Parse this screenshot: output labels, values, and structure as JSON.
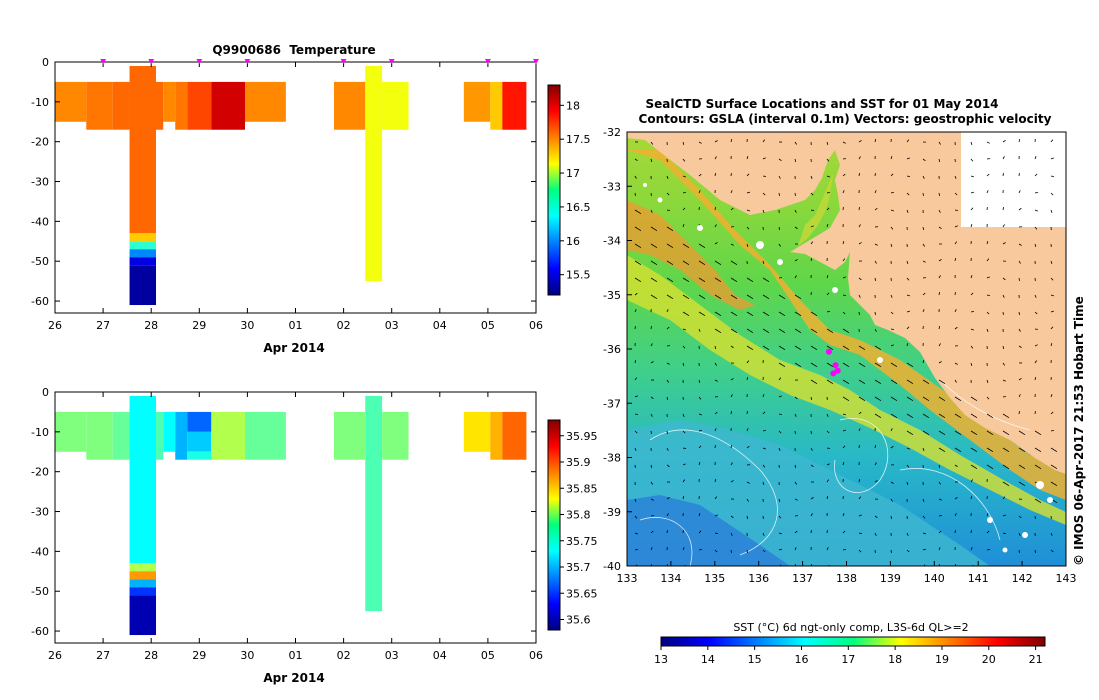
{
  "colors": {
    "land": "#f9c99e",
    "sea_white": "#ffffff",
    "marker": "#ff00ff",
    "axis": "#000000"
  },
  "chart_data": [
    {
      "id": "temperature-section",
      "type": "heatmap",
      "title": "Q9900686  Temperature",
      "xlabel": "Apr 2014",
      "ylabel": "",
      "x_ticks": [
        "26",
        "27",
        "28",
        "29",
        "30",
        "01",
        "02",
        "03",
        "04",
        "05",
        "06"
      ],
      "x_tick_days": [
        26,
        27,
        28,
        29,
        30,
        31,
        32,
        33,
        34,
        35,
        36
      ],
      "xlim": [
        26,
        36
      ],
      "y_ticks": [
        0,
        -10,
        -20,
        -30,
        -40,
        -50,
        -60
      ],
      "ylim": [
        -63,
        0
      ],
      "colorbar": {
        "ticks": [
          15.5,
          16,
          16.5,
          17,
          17.5,
          18
        ],
        "range": [
          15.2,
          18.3
        ]
      },
      "profile_markers": [
        27,
        28,
        29,
        30,
        32,
        33,
        35,
        36
      ],
      "profiles": [
        {
          "x0": 26.0,
          "x1": 26.65,
          "cells": [
            [
              -5,
              -15,
              17.5
            ]
          ]
        },
        {
          "x0": 26.65,
          "x1": 27.2,
          "cells": [
            [
              -5,
              -17,
              17.55
            ]
          ]
        },
        {
          "x0": 27.2,
          "x1": 27.55,
          "cells": [
            [
              -5,
              -17,
              17.6
            ]
          ]
        },
        {
          "x0": 27.55,
          "x1": 28.1,
          "cells": [
            [
              -1,
              -43,
              17.6
            ],
            [
              -43,
              -45,
              17.3
            ],
            [
              -45,
              -47,
              16.5
            ],
            [
              -47,
              -49,
              16.0
            ],
            [
              -49,
              -51,
              15.5
            ],
            [
              -51,
              -61,
              15.3
            ]
          ]
        },
        {
          "x0": 28.1,
          "x1": 28.25,
          "cells": [
            [
              -5,
              -17,
              17.6
            ]
          ]
        },
        {
          "x0": 28.25,
          "x1": 28.5,
          "cells": [
            [
              -5,
              -15,
              17.5
            ]
          ]
        },
        {
          "x0": 28.5,
          "x1": 28.75,
          "cells": [
            [
              -5,
              -17,
              17.55
            ]
          ]
        },
        {
          "x0": 28.75,
          "x1": 29.25,
          "cells": [
            [
              -5,
              -17,
              17.7
            ]
          ]
        },
        {
          "x0": 29.25,
          "x1": 29.95,
          "cells": [
            [
              -5,
              -17,
              18.05
            ]
          ]
        },
        {
          "x0": 29.95,
          "x1": 30.8,
          "cells": [
            [
              -5,
              -15,
              17.5
            ]
          ]
        },
        {
          "x0": 31.8,
          "x1": 32.45,
          "cells": [
            [
              -5,
              -17,
              17.5
            ]
          ]
        },
        {
          "x0": 32.45,
          "x1": 32.8,
          "cells": [
            [
              -1,
              -55,
              17.1
            ]
          ]
        },
        {
          "x0": 32.8,
          "x1": 33.35,
          "cells": [
            [
              -5,
              -17,
              17.1
            ]
          ]
        },
        {
          "x0": 34.5,
          "x1": 35.05,
          "cells": [
            [
              -5,
              -15,
              17.45
            ]
          ]
        },
        {
          "x0": 35.05,
          "x1": 35.3,
          "cells": [
            [
              -5,
              -17,
              17.3
            ]
          ]
        },
        {
          "x0": 35.3,
          "x1": 35.8,
          "cells": [
            [
              -5,
              -17,
              17.85
            ]
          ]
        }
      ]
    },
    {
      "id": "salinity-section",
      "type": "heatmap",
      "title": "",
      "xlabel": "Apr 2014",
      "ylabel": "",
      "x_ticks": [
        "26",
        "27",
        "28",
        "29",
        "30",
        "01",
        "02",
        "03",
        "04",
        "05",
        "06"
      ],
      "x_tick_days": [
        26,
        27,
        28,
        29,
        30,
        31,
        32,
        33,
        34,
        35,
        36
      ],
      "xlim": [
        26,
        36
      ],
      "y_ticks": [
        0,
        -10,
        -20,
        -30,
        -40,
        -50,
        -60
      ],
      "ylim": [
        -63,
        0
      ],
      "colorbar": {
        "ticks": [
          35.6,
          35.65,
          35.7,
          35.75,
          35.8,
          35.85,
          35.9,
          35.95
        ],
        "range": [
          35.58,
          35.98
        ]
      },
      "profiles": [
        {
          "x0": 26.0,
          "x1": 26.65,
          "cells": [
            [
              -5,
              -15,
              35.78
            ]
          ]
        },
        {
          "x0": 26.65,
          "x1": 27.2,
          "cells": [
            [
              -5,
              -17,
              35.78
            ]
          ]
        },
        {
          "x0": 27.2,
          "x1": 27.55,
          "cells": [
            [
              -5,
              -17,
              35.77
            ]
          ]
        },
        {
          "x0": 27.55,
          "x1": 28.1,
          "cells": [
            [
              -1,
              -43,
              35.73
            ],
            [
              -43,
              -45,
              35.8
            ],
            [
              -45,
              -47,
              35.87
            ],
            [
              -47,
              -49,
              35.7
            ],
            [
              -49,
              -51,
              35.65
            ],
            [
              -51,
              -61,
              35.6
            ]
          ]
        },
        {
          "x0": 28.1,
          "x1": 28.25,
          "cells": [
            [
              -5,
              -17,
              35.76
            ]
          ]
        },
        {
          "x0": 28.25,
          "x1": 28.5,
          "cells": [
            [
              -5,
              -15,
              35.73
            ]
          ]
        },
        {
          "x0": 28.5,
          "x1": 28.75,
          "cells": [
            [
              -5,
              -17,
              35.7
            ]
          ]
        },
        {
          "x0": 28.75,
          "x1": 29.25,
          "cells": [
            [
              -5,
              -10,
              35.67
            ],
            [
              -10,
              -15,
              35.71
            ],
            [
              -15,
              -17,
              35.74
            ]
          ]
        },
        {
          "x0": 29.25,
          "x1": 29.95,
          "cells": [
            [
              -5,
              -17,
              35.8
            ]
          ]
        },
        {
          "x0": 29.95,
          "x1": 30.8,
          "cells": [
            [
              -5,
              -17,
              35.77
            ]
          ]
        },
        {
          "x0": 31.8,
          "x1": 32.45,
          "cells": [
            [
              -5,
              -17,
              35.78
            ]
          ]
        },
        {
          "x0": 32.45,
          "x1": 32.8,
          "cells": [
            [
              -1,
              -55,
              35.76
            ]
          ]
        },
        {
          "x0": 32.8,
          "x1": 33.35,
          "cells": [
            [
              -5,
              -17,
              35.78
            ]
          ]
        },
        {
          "x0": 34.5,
          "x1": 35.05,
          "cells": [
            [
              -5,
              -15,
              35.84
            ]
          ]
        },
        {
          "x0": 35.05,
          "x1": 35.3,
          "cells": [
            [
              -5,
              -17,
              35.86
            ]
          ]
        },
        {
          "x0": 35.3,
          "x1": 35.8,
          "cells": [
            [
              -5,
              -17,
              35.89
            ]
          ]
        }
      ]
    },
    {
      "id": "sst-map",
      "type": "heatmap",
      "title_line1": "SealCTD Surface Locations and SST for 01 May 2014",
      "title_line2": "Contours: GSLA (interval 0.1m) Vectors: geostrophic velocity",
      "x_ticks": [
        133,
        134,
        135,
        136,
        137,
        138,
        139,
        140,
        141,
        142,
        143
      ],
      "xlim": [
        133,
        143
      ],
      "y_ticks": [
        -32,
        -33,
        -34,
        -35,
        -36,
        -37,
        -38,
        -39,
        -40
      ],
      "ylim": [
        -40,
        -32
      ],
      "colorbar_label": "SST (°C) 6d ngt-only comp, L3S-6d QL>=2",
      "colorbar_ticks": [
        13,
        14,
        15,
        16,
        17,
        18,
        19,
        20,
        21
      ],
      "colorbar_range": [
        13,
        21.2
      ],
      "credit": "© IMOS 06-Apr-2017 21:53 Hobart Time",
      "seal_positions": [
        [
          137.6,
          -36.05
        ],
        [
          137.75,
          -36.3
        ],
        [
          137.8,
          -36.4
        ],
        [
          137.7,
          -36.45
        ]
      ]
    }
  ]
}
